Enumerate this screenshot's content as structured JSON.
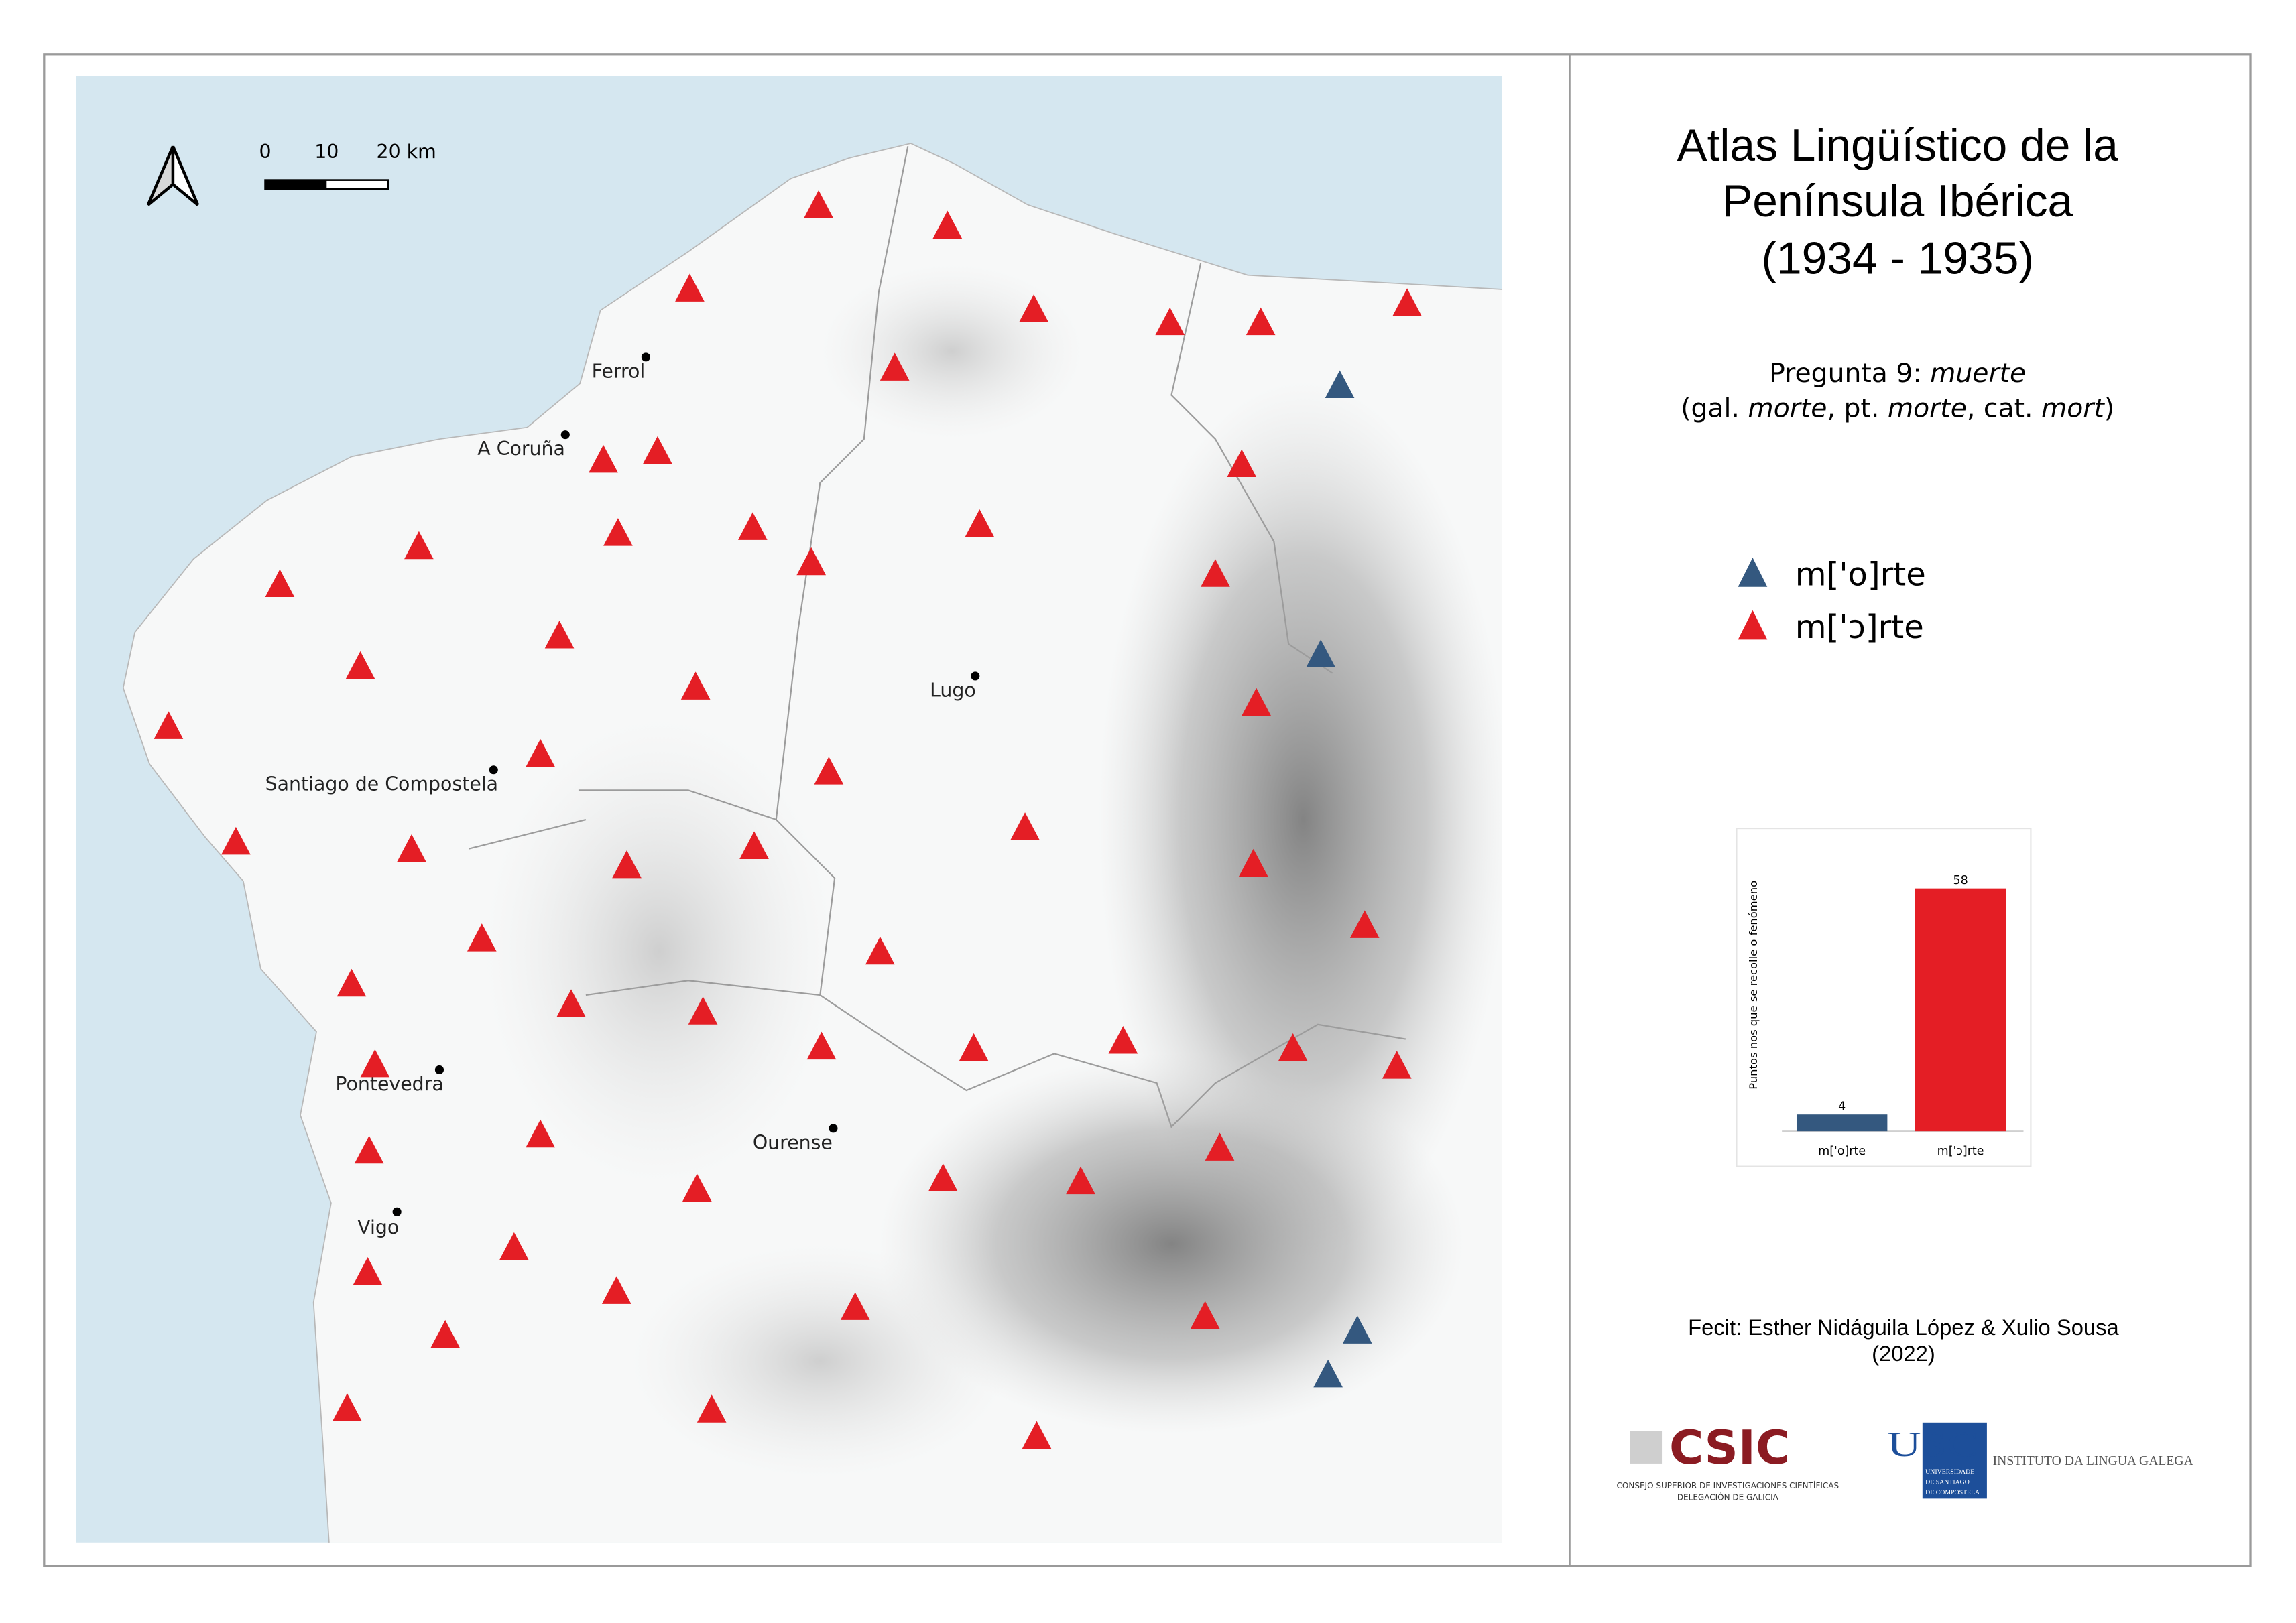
{
  "map": {
    "north_arrow": "north-arrow-icon",
    "scale_bar": {
      "labels": [
        "0",
        "10",
        "20 km"
      ]
    },
    "cities": [
      {
        "name": "Ferrol"
      },
      {
        "name": "A Coruña"
      },
      {
        "name": "Lugo"
      },
      {
        "name": "Santiago de Compostela"
      },
      {
        "name": "Pontevedra"
      },
      {
        "name": "Ourense"
      },
      {
        "name": "Vigo"
      }
    ],
    "colors": {
      "sea": "#d5e7f0",
      "land": "#f7f8f8",
      "marker_o": "#34587f",
      "marker_open_o": "#e41e25"
    }
  },
  "panel": {
    "title_lines": [
      "Atlas Lingüístico de la",
      "Península Ibérica",
      "(1934 - 1935)"
    ],
    "question_prefix": "Pregunta 9: ",
    "question_word": "muerte",
    "gloss": {
      "p1": "(gal. ",
      "gal": "morte",
      "p2": ", pt. ",
      "pt": "morte",
      "p3": ", cat. ",
      "cat": "mort",
      "p4": ")"
    },
    "legend": [
      {
        "label": "m['o]rte",
        "color": "#34587f",
        "count": 4
      },
      {
        "label": "m['ɔ]rte",
        "color": "#e41e25",
        "count": 58
      }
    ],
    "credits": {
      "line1": "Fecit: Esther Nidáguila López & Xulio Sousa",
      "line2": "(2022)"
    },
    "logos": {
      "csic": "CSIC",
      "csic_sub1": "CONSEJO SUPERIOR DE INVESTIGACIONES CIENTÍFICAS",
      "csic_sub2": "DELEGACIÓN DE GALICIA",
      "usc": "USC",
      "usc_sub": [
        "UNIVERSIDADE",
        "DE SANTIAGO",
        "DE COMPOSTELA"
      ],
      "ilg": "INSTITUTO DA LINGUA GALEGA"
    }
  },
  "chart_data": {
    "type": "bar",
    "categories": [
      "m['o]rte",
      "m['ɔ]rte"
    ],
    "values": [
      4,
      58
    ],
    "colors": [
      "#34587f",
      "#e41e25"
    ],
    "value_labels": [
      "4",
      "58"
    ],
    "ylabel": "Puntos nos que se recolle o fenómeno",
    "xlabel": "",
    "ylim": [
      0,
      58
    ]
  }
}
